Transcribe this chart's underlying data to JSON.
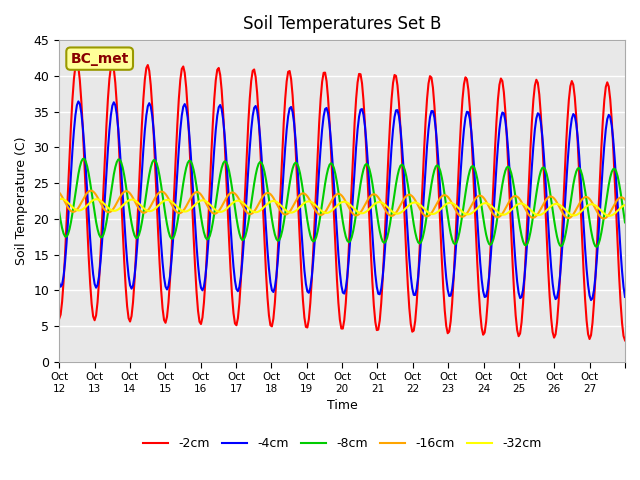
{
  "title": "Soil Temperatures Set B",
  "xlabel": "Time",
  "ylabel": "Soil Temperature (C)",
  "annotation": "BC_met",
  "ylim": [
    0,
    45
  ],
  "xlim": [
    0,
    16
  ],
  "xtick_positions": [
    0,
    1,
    2,
    3,
    4,
    5,
    6,
    7,
    8,
    9,
    10,
    11,
    12,
    13,
    14,
    15,
    16
  ],
  "xtick_labels": [
    "Oct 12",
    "Oct 13",
    "Oct 14",
    "Oct 15",
    "Oct 16",
    "Oct 17",
    "Oct 18",
    "Oct 19",
    "Oct 20",
    "Oct 21",
    "Oct 22",
    "Oct 23",
    "Oct 24",
    "Oct 25",
    "Oct 26",
    "Oct 27",
    ""
  ],
  "ytick_values": [
    0,
    5,
    10,
    15,
    20,
    25,
    30,
    35,
    40,
    45
  ],
  "legend_entries": [
    "-2cm",
    "-4cm",
    "-8cm",
    "-16cm",
    "-32cm"
  ],
  "colors": {
    "-2cm": "#FF0000",
    "-4cm": "#0000FF",
    "-8cm": "#00CC00",
    "-16cm": "#FFA500",
    "-32cm": "#FFFF00"
  },
  "line_widths": {
    "-2cm": 1.5,
    "-4cm": 1.5,
    "-8cm": 1.5,
    "-16cm": 1.5,
    "-32cm": 1.5
  },
  "plot_bg_color": "#E8E8E8",
  "fig_bg_color": "#FFFFFF",
  "grid_color": "#FFFFFF",
  "annotation_bg": "#FFFF99",
  "annotation_border": "#999900",
  "annotation_text_color": "#880000"
}
